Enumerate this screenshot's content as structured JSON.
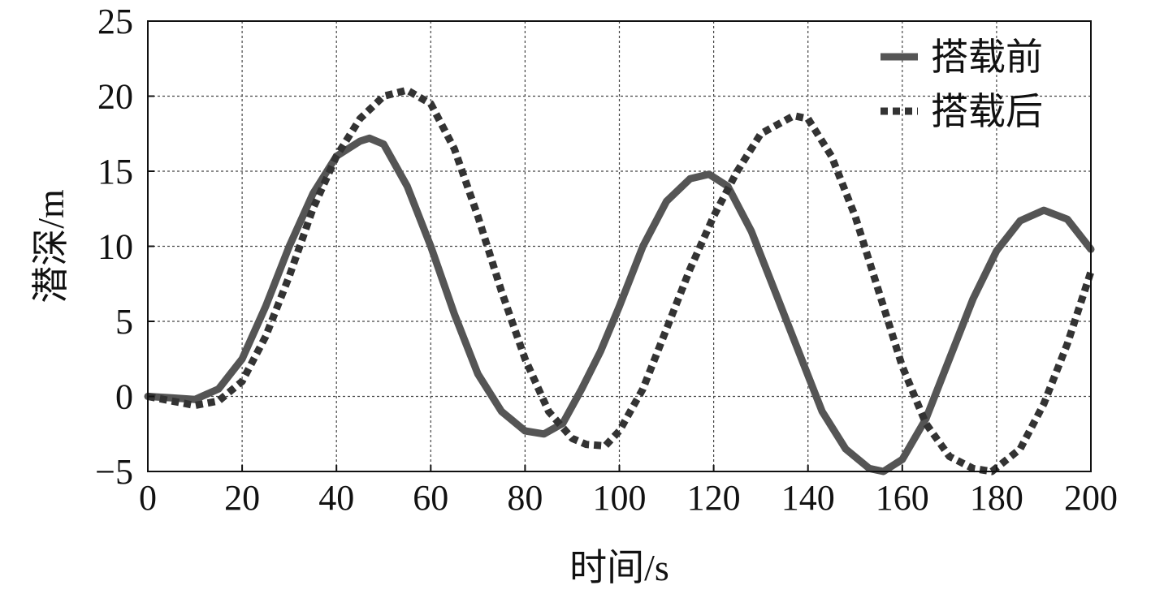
{
  "chart_data": {
    "type": "line",
    "title": "",
    "xlabel": "时间/s",
    "ylabel": "潜深/m",
    "xlim": [
      0,
      200
    ],
    "ylim": [
      -5,
      25
    ],
    "xticks": [
      0,
      20,
      40,
      60,
      80,
      100,
      120,
      140,
      160,
      180,
      200
    ],
    "yticks": [
      -5,
      0,
      5,
      10,
      15,
      20,
      25
    ],
    "ytick_labels": [
      "−5",
      "0",
      "5",
      "10",
      "15",
      "20",
      "25"
    ],
    "grid": true,
    "legend_position": "top-right",
    "series": [
      {
        "name": "搭载前",
        "style": "solid",
        "color": "#555555",
        "x": [
          0,
          5,
          10,
          15,
          20,
          25,
          30,
          35,
          40,
          45,
          47,
          50,
          55,
          60,
          65,
          70,
          75,
          80,
          84,
          88,
          92,
          96,
          100,
          105,
          110,
          115,
          119,
          123,
          128,
          133,
          138,
          143,
          148,
          153,
          156,
          160,
          165,
          170,
          175,
          180,
          185,
          190,
          195,
          200
        ],
        "y": [
          0,
          -0.1,
          -0.2,
          0.5,
          2.5,
          6.0,
          10.0,
          13.5,
          16.0,
          17.0,
          17.2,
          16.8,
          14.0,
          10.0,
          5.5,
          1.5,
          -1.0,
          -2.3,
          -2.5,
          -1.8,
          0.5,
          3.0,
          6.0,
          10.0,
          13.0,
          14.5,
          14.8,
          14.0,
          11.0,
          7.0,
          3.0,
          -1.0,
          -3.5,
          -4.8,
          -5.0,
          -4.2,
          -1.5,
          2.5,
          6.5,
          9.7,
          11.7,
          12.4,
          11.8,
          9.8
        ]
      },
      {
        "name": "搭载后",
        "style": "dotted",
        "color": "#333333",
        "x": [
          0,
          5,
          10,
          15,
          20,
          25,
          30,
          35,
          40,
          45,
          50,
          55,
          60,
          65,
          70,
          75,
          80,
          85,
          90,
          93,
          97,
          100,
          105,
          110,
          115,
          120,
          125,
          130,
          137,
          140,
          145,
          150,
          155,
          160,
          165,
          170,
          175,
          179,
          185,
          190,
          195,
          200
        ],
        "y": [
          0,
          -0.3,
          -0.6,
          -0.3,
          1.0,
          4.0,
          8.0,
          12.5,
          16.0,
          18.5,
          20.0,
          20.4,
          19.5,
          16.5,
          12.0,
          7.0,
          2.5,
          -1.0,
          -2.8,
          -3.2,
          -3.3,
          -2.3,
          0.5,
          4.5,
          8.5,
          12.0,
          15.0,
          17.5,
          18.7,
          18.5,
          16.0,
          12.0,
          7.0,
          2.0,
          -1.8,
          -4.0,
          -4.8,
          -5.0,
          -3.5,
          -0.5,
          3.5,
          8.3
        ]
      }
    ]
  }
}
